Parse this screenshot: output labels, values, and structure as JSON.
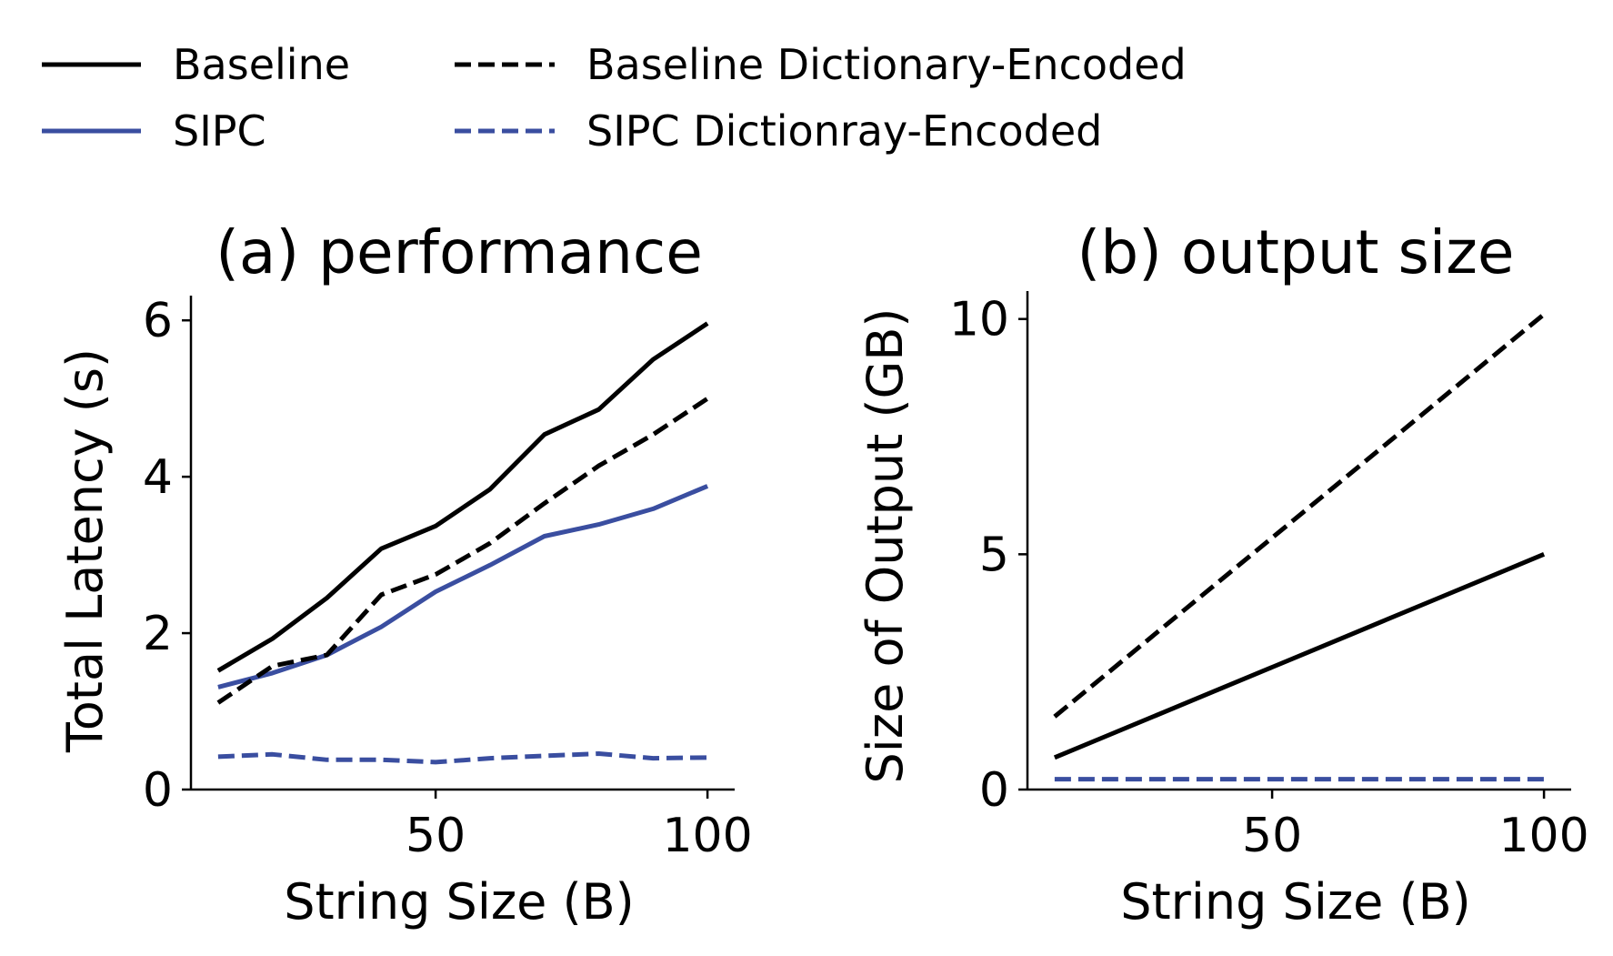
{
  "legend": {
    "entries": [
      {
        "label": "Baseline",
        "color": "#000000",
        "dashed": false
      },
      {
        "label": "SIPC",
        "color": "#3a4ea0",
        "dashed": false
      },
      {
        "label": "Baseline Dictionary-Encoded",
        "color": "#000000",
        "dashed": true
      },
      {
        "label": "SIPC Dictionray-Encoded",
        "color": "#3a4ea0",
        "dashed": true
      }
    ]
  },
  "chart_data": [
    {
      "type": "line",
      "title": "(a) performance",
      "xlabel": "String Size (B)",
      "ylabel": "Total Latency (s)",
      "xlim": [
        5,
        105
      ],
      "ylim": [
        0,
        6.2
      ],
      "xticks": [
        50,
        100
      ],
      "yticks": [
        0,
        2,
        4,
        6
      ],
      "x": [
        10,
        20,
        30,
        40,
        50,
        60,
        70,
        80,
        90,
        100
      ],
      "series": [
        {
          "name": "Baseline",
          "color": "#000000",
          "dashed": false,
          "values": [
            1.52,
            1.93,
            2.45,
            3.08,
            3.37,
            3.84,
            4.54,
            4.86,
            5.5,
            5.96
          ]
        },
        {
          "name": "SIPC",
          "color": "#3a4ea0",
          "dashed": false,
          "values": [
            1.31,
            1.49,
            1.72,
            2.08,
            2.53,
            2.87,
            3.24,
            3.39,
            3.59,
            3.88
          ]
        },
        {
          "name": "Baseline Dictionary-Encoded",
          "color": "#000000",
          "dashed": true,
          "values": [
            1.11,
            1.58,
            1.72,
            2.49,
            2.75,
            3.15,
            3.66,
            4.14,
            4.54,
            5.0
          ]
        },
        {
          "name": "SIPC Dictionray-Encoded",
          "color": "#3a4ea0",
          "dashed": true,
          "values": [
            0.42,
            0.45,
            0.38,
            0.38,
            0.35,
            0.4,
            0.43,
            0.46,
            0.4,
            0.41
          ]
        }
      ]
    },
    {
      "type": "line",
      "title": "(b) output size",
      "xlabel": "String Size (B)",
      "ylabel": "Size of Output (GB)",
      "xlim": [
        5,
        105
      ],
      "ylim": [
        0,
        10.4
      ],
      "xticks": [
        50,
        100
      ],
      "yticks": [
        0,
        5,
        10
      ],
      "x": [
        10,
        20,
        30,
        40,
        50,
        60,
        70,
        80,
        90,
        100
      ],
      "series": [
        {
          "name": "Baseline",
          "color": "#000000",
          "dashed": false,
          "values": [
            0.68,
            1.16,
            1.64,
            2.12,
            2.6,
            3.08,
            3.56,
            4.04,
            4.52,
            5.0
          ]
        },
        {
          "name": "Baseline Dictionary-Encoded",
          "color": "#000000",
          "dashed": true,
          "values": [
            1.55,
            2.5,
            3.45,
            4.4,
            5.35,
            6.3,
            7.25,
            8.2,
            9.15,
            10.1
          ]
        },
        {
          "name": "SIPC Dictionray-Encoded",
          "color": "#3a4ea0",
          "dashed": true,
          "values": [
            0.22,
            0.22,
            0.22,
            0.22,
            0.22,
            0.22,
            0.22,
            0.22,
            0.22,
            0.22
          ]
        }
      ]
    }
  ]
}
